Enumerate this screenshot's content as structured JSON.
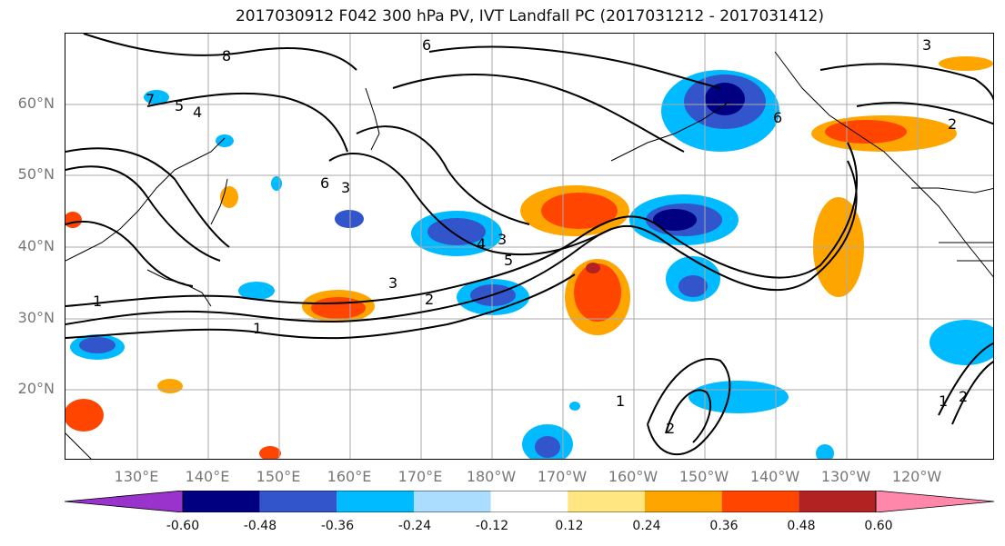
{
  "title": "2017030912 F042 300 hPa PV, IVT Landfall PC (2017031212 - 2017031412)",
  "lat_labels": [
    "60°N",
    "50°N",
    "40°N",
    "30°N",
    "20°N"
  ],
  "lon_labels": [
    "130°E",
    "140°E",
    "150°E",
    "160°E",
    "170°E",
    "180°W",
    "170°W",
    "160°W",
    "150°W",
    "140°W",
    "130°W",
    "120°W"
  ],
  "colorbar": {
    "colors": [
      "#9933cc",
      "#000080",
      "#3355cc",
      "#00bbff",
      "#aaddff",
      "#ffffff",
      "#ffe680",
      "#ffa500",
      "#ff4500",
      "#b22222",
      "#ff88aa"
    ],
    "tick_labels": [
      "-0.60",
      "-0.48",
      "-0.36",
      "-0.24",
      "-0.12",
      "0.12",
      "0.24",
      "0.36",
      "0.48",
      "0.60"
    ]
  },
  "contour_labels": [
    "1",
    "1",
    "2",
    "3",
    "3",
    "4",
    "5",
    "6",
    "6",
    "7",
    "8",
    "1",
    "2",
    "3",
    "4",
    "5",
    "2",
    "6",
    "1",
    "2",
    "3"
  ]
}
